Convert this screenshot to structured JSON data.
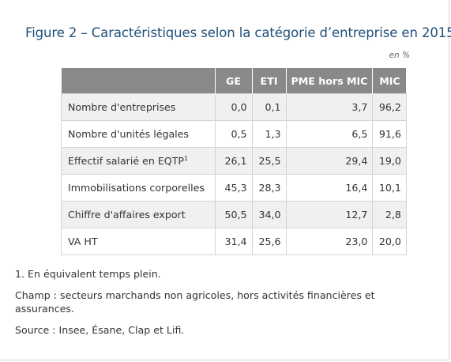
{
  "figure": {
    "title": "Figure 2 – Caractéristiques selon la catégorie d’entreprise en 2015",
    "unit": "en %"
  },
  "table": {
    "columns": [
      "GE",
      "ETI",
      "PME hors MIC",
      "MIC"
    ],
    "rows": [
      {
        "label": "Nombre d'entreprises",
        "sup": "",
        "values": [
          "0,0",
          "0,1",
          "3,7",
          "96,2"
        ]
      },
      {
        "label": "Nombre d'unités légales",
        "sup": "",
        "values": [
          "0,5",
          "1,3",
          "6,5",
          "91,6"
        ]
      },
      {
        "label": "Effectif salarié en EQTP",
        "sup": "1",
        "values": [
          "26,1",
          "25,5",
          "29,4",
          "19,0"
        ]
      },
      {
        "label": "Immobilisations corporelles",
        "sup": "",
        "values": [
          "45,3",
          "28,3",
          "16,4",
          "10,1"
        ]
      },
      {
        "label": "Chiffre d'affaires export",
        "sup": "",
        "values": [
          "50,5",
          "34,0",
          "12,7",
          "2,8"
        ]
      },
      {
        "label": "VA HT",
        "sup": "",
        "values": [
          "31,4",
          "25,6",
          "23,0",
          "20,0"
        ]
      }
    ]
  },
  "notes": {
    "footnote": "1. En équivalent temps plein.",
    "champ": "Champ : secteurs marchands non agricoles, hors activités financières et assurances.",
    "source": "Source : Insee, Ésane, Clap et Lifi."
  },
  "colors": {
    "title": "#1f4e79",
    "header_bg": "#898989",
    "shade_bg": "#f0f0f0"
  }
}
